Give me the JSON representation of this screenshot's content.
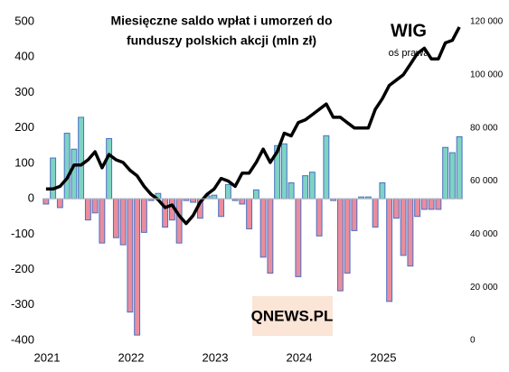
{
  "chart_data": {
    "type": "bar-line",
    "title": [
      "Miesięczne saldo wpłat i umorzeń do",
      "funduszy polskich akcji (mln zł)"
    ],
    "annotation": "WIG",
    "annotation_note": "oś prawa",
    "logo": "QNEWS.PL",
    "categories": [
      "2021",
      null,
      null,
      null,
      null,
      null,
      null,
      null,
      null,
      null,
      null,
      null,
      "2022",
      null,
      null,
      null,
      null,
      null,
      null,
      null,
      null,
      null,
      null,
      null,
      "2023",
      null,
      null,
      null,
      null,
      null,
      null,
      null,
      null,
      null,
      null,
      null,
      "2024",
      null,
      null,
      null,
      null,
      null,
      null,
      null,
      null,
      null,
      null,
      null,
      "2025",
      null,
      null,
      null,
      null,
      null,
      null,
      null,
      null,
      null,
      null,
      null
    ],
    "series": [
      {
        "name": "saldo",
        "positive_color": "#7fd3c3",
        "negative_color": "#e98d9c",
        "outline": "#4a6fc4",
        "values": [
          -15,
          115,
          -25,
          185,
          140,
          230,
          -60,
          -40,
          -125,
          170,
          -110,
          -130,
          -320,
          -385,
          -95,
          -5,
          15,
          -80,
          -60,
          -125,
          -5,
          -10,
          -55,
          8,
          10,
          -50,
          40,
          -5,
          -15,
          -85,
          25,
          -165,
          -210,
          150,
          155,
          45,
          -220,
          65,
          75,
          -105,
          178,
          -5,
          -260,
          -210,
          -90,
          5,
          5,
          -80,
          45,
          -290,
          -55,
          -160,
          -190,
          -50,
          -30,
          -30,
          -30,
          145,
          130,
          175
        ]
      },
      {
        "name": "WIG",
        "color": "#000000",
        "axis": "y2",
        "values": [
          57000,
          57000,
          58000,
          61000,
          66000,
          66000,
          68000,
          71000,
          65000,
          70000,
          68000,
          67000,
          64000,
          62000,
          58000,
          55000,
          53000,
          50000,
          51000,
          47000,
          44000,
          47000,
          52000,
          55000,
          57000,
          61000,
          60000,
          58000,
          63000,
          63000,
          67000,
          72000,
          67000,
          71000,
          78000,
          77000,
          82000,
          83000,
          85000,
          87000,
          89000,
          84000,
          84000,
          82000,
          80000,
          80000,
          80000,
          87000,
          91000,
          96000,
          98000,
          100000,
          104000,
          108000,
          110000,
          106000,
          106000,
          112000,
          113000,
          118000
        ]
      }
    ],
    "ylim": [
      -400,
      500
    ],
    "yticks": [
      -400,
      -300,
      -200,
      -100,
      0,
      100,
      200,
      300,
      400,
      500
    ],
    "y2lim": [
      0,
      120000
    ],
    "y2ticks": [
      0,
      {
        "value": 20000,
        "label": "20 000"
      },
      {
        "value": 40000,
        "label": "40 000"
      },
      {
        "value": 60000,
        "label": "60 000"
      },
      {
        "value": 80000,
        "label": "80 000"
      },
      {
        "value": 100000,
        "label": "100 000"
      },
      {
        "value": 120000,
        "label": "120 000"
      }
    ],
    "grid": false
  }
}
